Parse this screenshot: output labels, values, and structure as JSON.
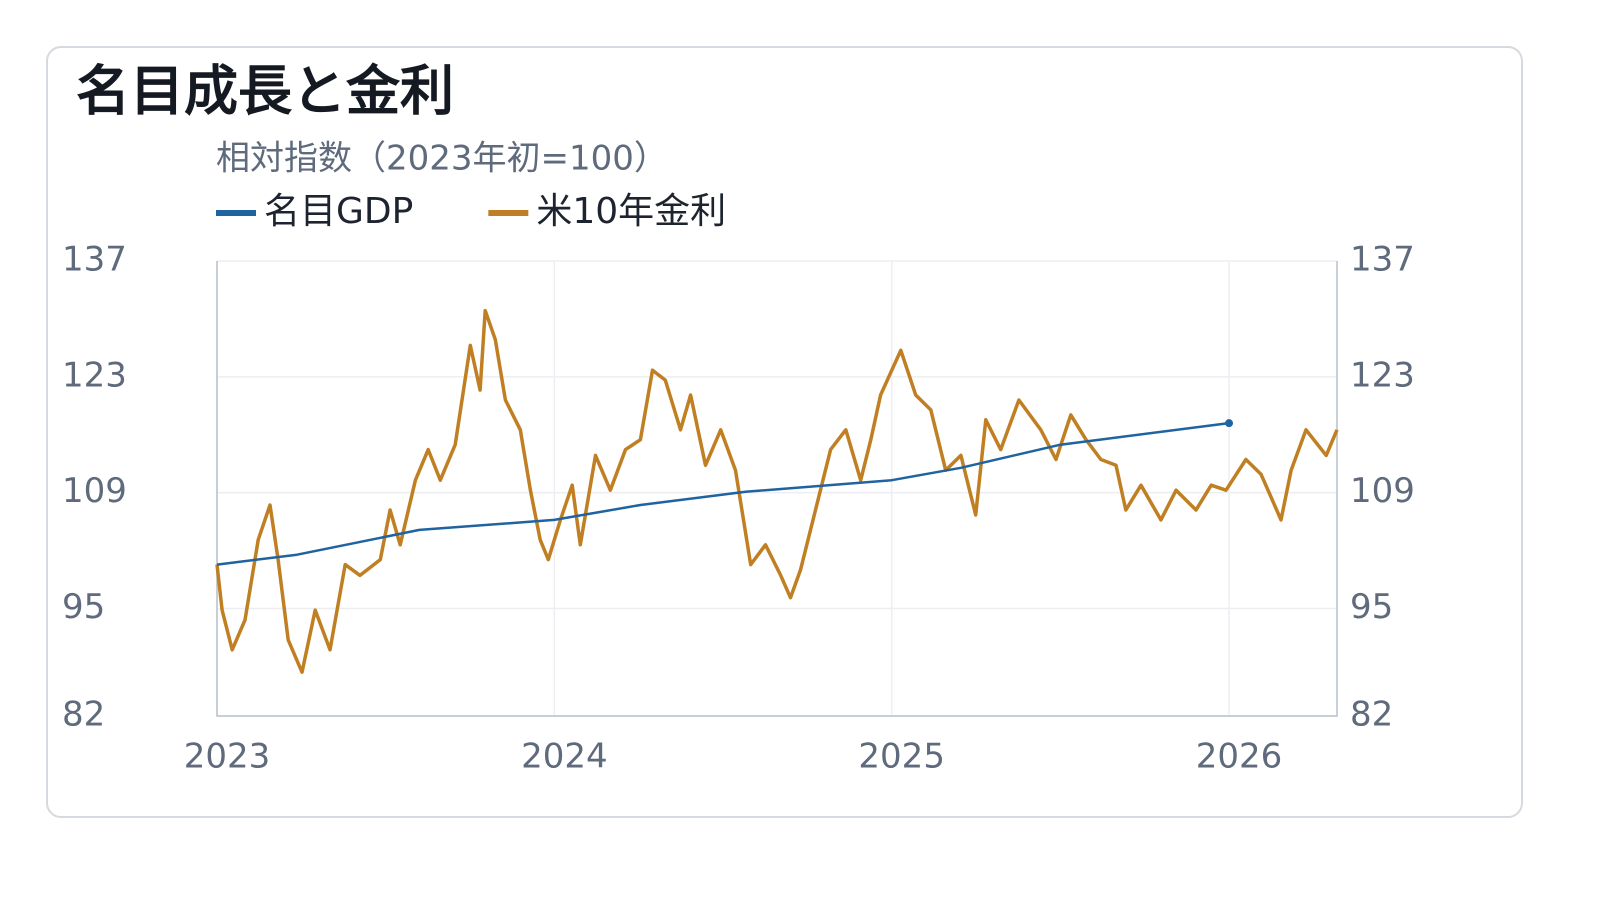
{
  "chart_data": {
    "type": "line",
    "title": "名目成長と金利",
    "subtitle": "相対指数（2023年初=100）",
    "xlim": [
      2023,
      2026.32
    ],
    "xticks": [
      2023,
      2024,
      2025,
      2026
    ],
    "ylim": [
      82,
      137
    ],
    "yticks": [
      82,
      95,
      109,
      123,
      137
    ],
    "grid": true,
    "legend": "top-left",
    "series": [
      {
        "name": "名目GDP",
        "color": "#1f63a0",
        "end_marker": true,
        "x": [
          2023.0,
          2023.237,
          2023.6,
          2024.0,
          2024.255,
          2024.567,
          2025.0,
          2025.205,
          2025.5,
          2026.0
        ],
        "values": [
          100.3,
          101.5,
          104.5,
          105.7,
          107.5,
          109.1,
          110.5,
          112,
          114.8,
          117.4
        ]
      },
      {
        "name": "米10年金利",
        "color": "#c07f22",
        "x": [
          2023.0,
          2023.015,
          2023.045,
          2023.083,
          2023.122,
          2023.157,
          2023.181,
          2023.211,
          2023.252,
          2023.291,
          2023.335,
          2023.38,
          2023.424,
          2023.484,
          2023.513,
          2023.543,
          2023.588,
          2023.626,
          2023.662,
          2023.706,
          2023.751,
          2023.78,
          2023.795,
          2023.825,
          2023.855,
          2023.899,
          2023.929,
          2023.958,
          2023.982,
          2024.018,
          2024.053,
          2024.077,
          2024.122,
          2024.166,
          2024.211,
          2024.255,
          2024.291,
          2024.329,
          2024.374,
          2024.404,
          2024.448,
          2024.493,
          2024.537,
          2024.582,
          2024.626,
          2024.671,
          2024.7,
          2024.73,
          2024.774,
          2024.819,
          2024.864,
          2024.908,
          2024.938,
          2024.967,
          2025.027,
          2025.071,
          2025.116,
          2025.16,
          2025.205,
          2025.249,
          2025.279,
          2025.323,
          2025.377,
          2025.442,
          2025.487,
          2025.531,
          2025.576,
          2025.62,
          2025.665,
          2025.694,
          2025.739,
          2025.798,
          2025.843,
          2025.902,
          2025.947,
          2025.991,
          2026.05,
          2026.095,
          2026.154,
          2026.184,
          2026.228,
          2026.288,
          2026.32
        ],
        "values": [
          100.3,
          94.8,
          90,
          93.6,
          103.3,
          107.5,
          100.9,
          91.2,
          87.3,
          94.8,
          90,
          100.3,
          99,
          100.9,
          106.9,
          102.7,
          110.5,
          114.2,
          110.5,
          114.8,
          126.8,
          121.4,
          131,
          127.5,
          120.2,
          116.6,
          109.3,
          103.3,
          100.9,
          105.7,
          109.9,
          102.7,
          113.5,
          109.3,
          114.2,
          115.4,
          123.8,
          122.6,
          116.6,
          120.8,
          112.3,
          116.6,
          111.7,
          100.3,
          102.7,
          99,
          96.3,
          99.7,
          106.9,
          114.2,
          116.6,
          110.5,
          115.4,
          120.8,
          126.2,
          120.8,
          119,
          111.7,
          113.5,
          106.3,
          117.8,
          114.2,
          120.2,
          116.6,
          113,
          118.4,
          115.4,
          113,
          112.3,
          106.9,
          109.9,
          105.7,
          109.3,
          106.9,
          109.9,
          109.3,
          113,
          111.2,
          105.7,
          111.7,
          116.6,
          113.5,
          116.6
        ]
      }
    ]
  }
}
